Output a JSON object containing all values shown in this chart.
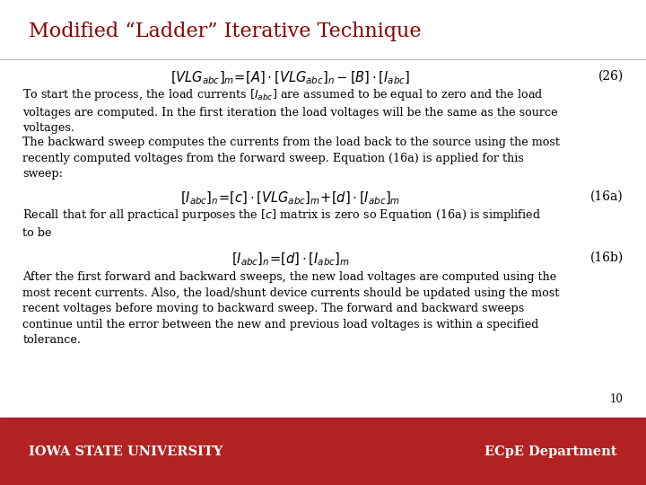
{
  "title": "Modified “Ladder” Iterative Technique",
  "title_color": "#8B0000",
  "title_fontsize": 16,
  "background_color": "#FFFFFF",
  "footer_bg_color": "#B22222",
  "footer_text_left": "Iowa State University",
  "footer_text_right": "ECpE Department",
  "page_number": "10",
  "eq26_label": "(26)",
  "eq16a_label": "(16a)",
  "eq16b_label": "(16b)"
}
